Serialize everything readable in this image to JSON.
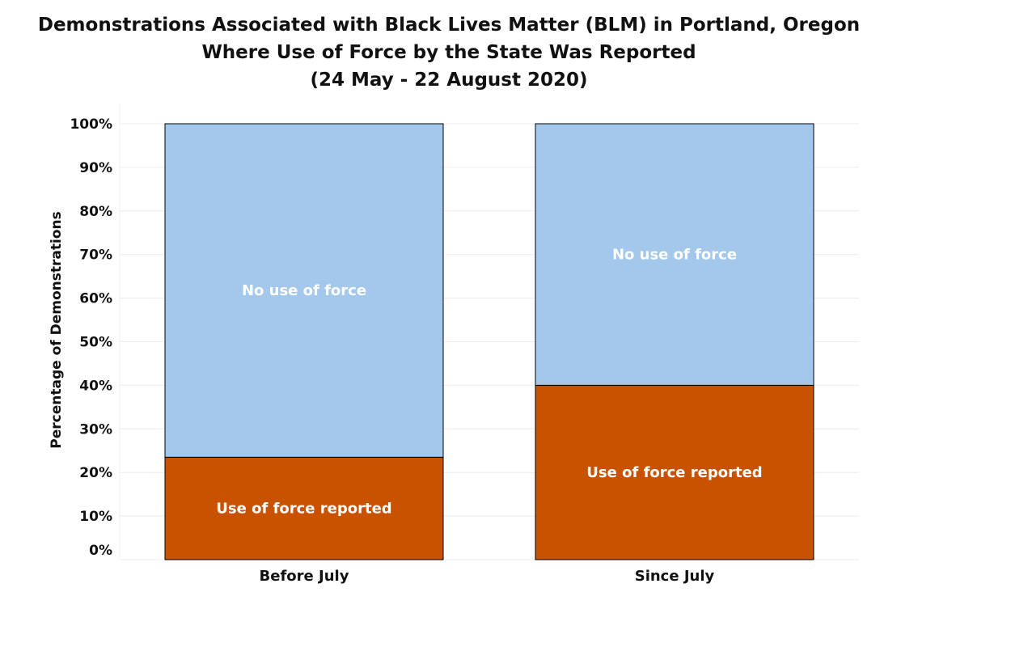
{
  "chart_data": {
    "type": "bar",
    "stacked": true,
    "title": [
      "Demonstrations Associated with Black Lives Matter (BLM) in Portland, Oregon",
      "Where Use of Force by the State Was Reported",
      "(24 May - 22 August 2020)"
    ],
    "xlabel": "",
    "ylabel": "Percentage of Demonstrations",
    "ylim": [
      0,
      100
    ],
    "yticks": [
      0,
      10,
      20,
      30,
      40,
      50,
      60,
      70,
      80,
      90,
      100
    ],
    "ytick_labels": [
      "0%",
      "10%",
      "20%",
      "30%",
      "40%",
      "50%",
      "60%",
      "70%",
      "80%",
      "90%",
      "100%"
    ],
    "categories": [
      "Before July",
      "Since July"
    ],
    "series": [
      {
        "name": "Use of force reported",
        "color": "#c85200",
        "values": [
          23.5,
          40
        ]
      },
      {
        "name": "No use of force",
        "color": "#a3c8eb",
        "values": [
          76.5,
          60
        ]
      }
    ],
    "grid": true,
    "legend": "none"
  }
}
